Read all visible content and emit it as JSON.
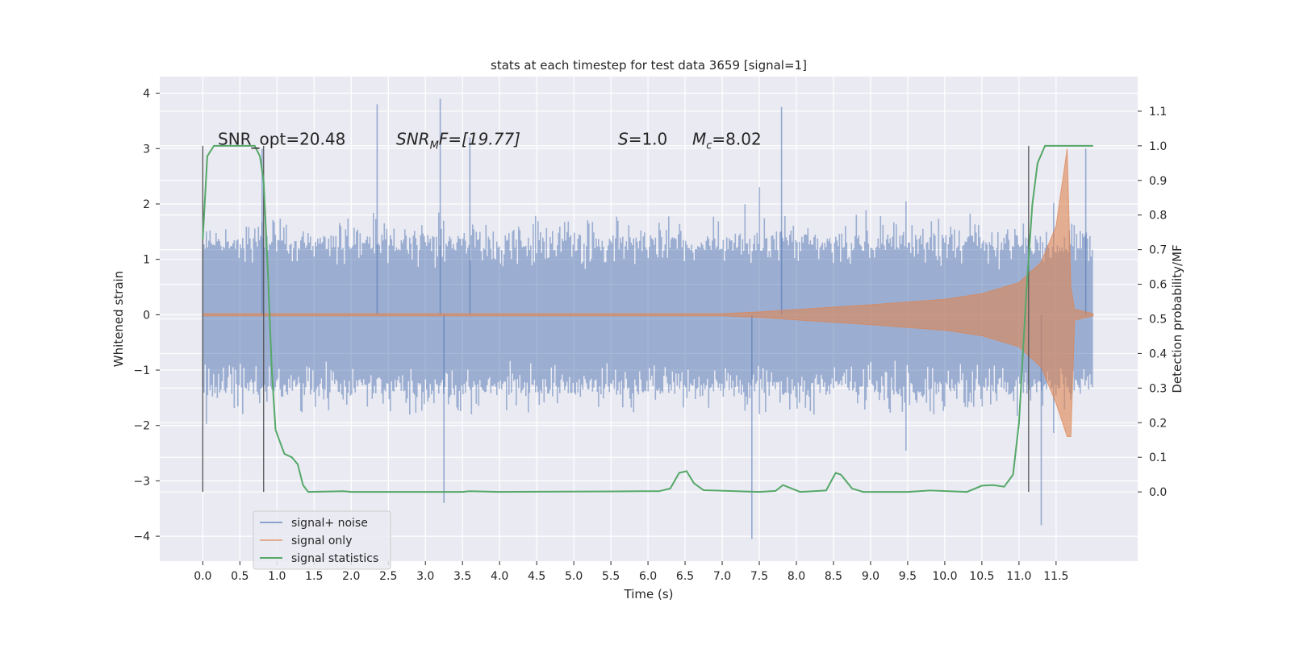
{
  "chart_data": {
    "type": "line",
    "title": "stats at each timestep for test data 3659 [signal=1]",
    "xlabel": "Time (s)",
    "ylabel": "Whitened strain",
    "ylabel_right": "Detection probability/MF",
    "xlim": [
      -0.58,
      12.6
    ],
    "ylim": [
      -4.45,
      4.3
    ],
    "ylim_right": [
      -0.2,
      1.2
    ],
    "x_ticks": [
      "0.0",
      "0.5",
      "1.0",
      "1.5",
      "2.0",
      "2.5",
      "3.0",
      "3.5",
      "4.0",
      "4.5",
      "5.0",
      "5.5",
      "6.0",
      "6.5",
      "7.0",
      "7.5",
      "8.0",
      "8.5",
      "9.0",
      "9.5",
      "10.0",
      "10.5",
      "11.0",
      "11.5"
    ],
    "y_ticks": [
      "4",
      "3",
      "2",
      "1",
      "0",
      "−1",
      "−2",
      "−3",
      "−4"
    ],
    "y_ticks_right": [
      "1.1",
      "1.0",
      "0.9",
      "0.8",
      "0.7",
      "0.6",
      "0.5",
      "0.4",
      "0.3",
      "0.2",
      "0.1",
      "0.0"
    ],
    "grid": true,
    "legend_position": "lower-left",
    "background": "#eaeaf2",
    "annotations": {
      "snr_opt": "SNR_opt=20.48",
      "snr_mf_prefix": "SNR",
      "snr_mf_sub": "M",
      "snr_mf_suffix": "F=[19.77]",
      "s_prefix": "S",
      "s_suffix": "=1.0",
      "mc_prefix": "M",
      "mc_sub": "c",
      "mc_suffix": "=8.02"
    },
    "vertical_markers_x": [
      0.0,
      0.82,
      11.13
    ],
    "series": [
      {
        "name": "signal+ noise",
        "color": "#4c72b0",
        "x_range": [
          0.0,
          12.0
        ],
        "envelope_typical": 1.3,
        "peaks": [
          {
            "x": 0.8,
            "y": 3.0
          },
          {
            "x": 2.35,
            "y": 3.8
          },
          {
            "x": 3.2,
            "y": 3.9
          },
          {
            "x": 3.25,
            "y": -3.4
          },
          {
            "x": 3.6,
            "y": 3.2
          },
          {
            "x": 7.4,
            "y": -4.05
          },
          {
            "x": 7.8,
            "y": 3.75
          },
          {
            "x": 11.3,
            "y": -3.8
          },
          {
            "x": 11.9,
            "y": 3.0
          }
        ]
      },
      {
        "name": "signal only",
        "color": "#dd8452",
        "x_range": [
          0.0,
          12.0
        ],
        "amplitude_points": [
          [
            0.0,
            0.02
          ],
          [
            7.0,
            0.02
          ],
          [
            7.5,
            0.05
          ],
          [
            9.0,
            0.18
          ],
          [
            10.0,
            0.28
          ],
          [
            10.5,
            0.38
          ],
          [
            11.0,
            0.58
          ],
          [
            11.3,
            0.95
          ],
          [
            11.5,
            1.6
          ],
          [
            11.65,
            3.0
          ],
          [
            11.7,
            0.5
          ],
          [
            11.75,
            0.1
          ],
          [
            12.0,
            0.02
          ]
        ]
      },
      {
        "name": "signal statistics",
        "color": "#55a868",
        "axis": "right",
        "points": [
          [
            0.0,
            0.73
          ],
          [
            0.06,
            0.97
          ],
          [
            0.15,
            1.0
          ],
          [
            0.7,
            1.0
          ],
          [
            0.77,
            0.97
          ],
          [
            0.82,
            0.9
          ],
          [
            0.88,
            0.62
          ],
          [
            0.93,
            0.35
          ],
          [
            0.98,
            0.18
          ],
          [
            1.03,
            0.15
          ],
          [
            1.1,
            0.11
          ],
          [
            1.2,
            0.1
          ],
          [
            1.28,
            0.08
          ],
          [
            1.35,
            0.02
          ],
          [
            1.42,
            0.0
          ],
          [
            1.9,
            0.002
          ],
          [
            2.0,
            0.0
          ],
          [
            3.5,
            0.0
          ],
          [
            3.6,
            0.002
          ],
          [
            4.0,
            0.0
          ],
          [
            5.9,
            0.002
          ],
          [
            6.15,
            0.002
          ],
          [
            6.3,
            0.01
          ],
          [
            6.42,
            0.055
          ],
          [
            6.52,
            0.06
          ],
          [
            6.62,
            0.025
          ],
          [
            6.75,
            0.005
          ],
          [
            7.5,
            0.0
          ],
          [
            7.72,
            0.003
          ],
          [
            7.82,
            0.02
          ],
          [
            7.9,
            0.013
          ],
          [
            8.05,
            0.0
          ],
          [
            8.4,
            0.004
          ],
          [
            8.53,
            0.055
          ],
          [
            8.6,
            0.05
          ],
          [
            8.75,
            0.01
          ],
          [
            8.9,
            0.0
          ],
          [
            9.5,
            0.0
          ],
          [
            9.8,
            0.004
          ],
          [
            10.3,
            0.0
          ],
          [
            10.5,
            0.018
          ],
          [
            10.65,
            0.02
          ],
          [
            10.8,
            0.015
          ],
          [
            10.92,
            0.05
          ],
          [
            11.0,
            0.2
          ],
          [
            11.1,
            0.58
          ],
          [
            11.18,
            0.83
          ],
          [
            11.25,
            0.95
          ],
          [
            11.35,
            1.0
          ],
          [
            12.0,
            1.0
          ]
        ]
      }
    ]
  }
}
